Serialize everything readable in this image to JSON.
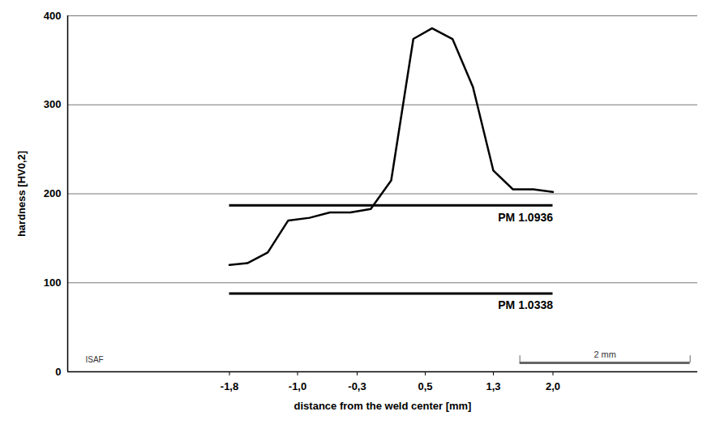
{
  "chart_data": {
    "type": "line",
    "x_label": "distance from the weld center [mm]",
    "y_label": "hardness [HV0,2]",
    "x": [
      -1.8,
      -1.59,
      -1.35,
      -1.11,
      -0.86,
      -0.62,
      -0.38,
      -0.14,
      0.1,
      0.36,
      0.58,
      0.82,
      1.06,
      1.3,
      1.53,
      1.77,
      2.0
    ],
    "values": [
      120,
      122,
      134,
      170,
      173,
      179,
      179,
      183,
      215,
      374,
      386,
      374,
      320,
      226,
      205,
      205,
      202
    ],
    "color": "#000000",
    "reference_lines": [
      {
        "label": "PM 1.0936",
        "value": 187
      },
      {
        "label": "PM 1.0338",
        "value": 88
      }
    ],
    "annotations": [
      "ISAF"
    ],
    "scale_bar": {
      "label": "2 mm",
      "length": 2
    },
    "xlim": [
      -3.7,
      3.7
    ],
    "xticks": [
      {
        "value": -1.8,
        "label": "-1,8"
      },
      {
        "value": -1.0,
        "label": "-1,0"
      },
      {
        "value": -0.3,
        "label": "-0,3"
      },
      {
        "value": 0.5,
        "label": "0,5"
      },
      {
        "value": 1.3,
        "label": "1,3"
      },
      {
        "value": 2.0,
        "label": "2,0"
      }
    ],
    "ylim": [
      0,
      400
    ],
    "yticks": [
      0,
      100,
      200,
      300,
      400
    ],
    "grid": true
  }
}
